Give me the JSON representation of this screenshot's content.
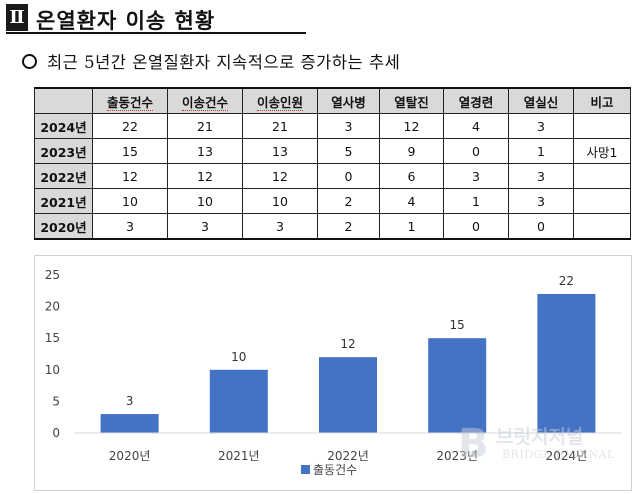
{
  "section": {
    "number": "Ⅱ",
    "title": "온열환자 이송 현황"
  },
  "bullet": {
    "text": "최근 5년간 온열질환자 지속적으로 증가하는 추세"
  },
  "table": {
    "headers": [
      "",
      "출동건수",
      "이송건수",
      "이송인원",
      "열사병",
      "열탈진",
      "열경련",
      "열실신",
      "비고"
    ],
    "rows": [
      [
        "2024년",
        "22",
        "21",
        "21",
        "3",
        "12",
        "4",
        "3",
        ""
      ],
      [
        "2023년",
        "15",
        "13",
        "13",
        "5",
        "9",
        "0",
        "1",
        "사망1"
      ],
      [
        "2022년",
        "12",
        "12",
        "12",
        "0",
        "6",
        "3",
        "3",
        ""
      ],
      [
        "2021년",
        "10",
        "10",
        "10",
        "2",
        "4",
        "1",
        "3",
        ""
      ],
      [
        "2020년",
        "3",
        "3",
        "3",
        "2",
        "1",
        "0",
        "0",
        ""
      ]
    ]
  },
  "chart_data": {
    "type": "bar",
    "categories": [
      "2020년",
      "2021년",
      "2022년",
      "2023년",
      "2024년"
    ],
    "series": [
      {
        "name": "출동건수",
        "values": [
          3,
          10,
          12,
          15,
          22
        ]
      }
    ],
    "y_ticks": [
      "0",
      "5",
      "10",
      "15",
      "20",
      "25"
    ],
    "ylim": [
      0,
      25
    ],
    "grid": false,
    "legend": "bottom",
    "bar_color": "#4472c4"
  },
  "watermark": {
    "text": "브릿지저널",
    "sub": "BRIDGE JOURNAL",
    "logo": "B"
  }
}
